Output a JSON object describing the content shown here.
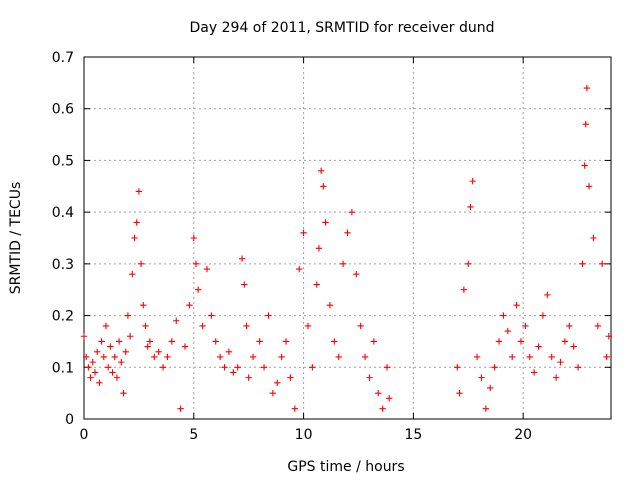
{
  "chart_data": {
    "type": "scatter",
    "title": "Day 294 of 2011, SRMTID for receiver dund",
    "xlabel": "GPS time / hours",
    "ylabel": "SRMTID / TECUs",
    "xlim": [
      0,
      24
    ],
    "ylim": [
      0,
      0.7
    ],
    "xticks": [
      0,
      5,
      10,
      15,
      20
    ],
    "yticks": [
      0,
      0.1,
      0.2,
      0.3,
      0.4,
      0.5,
      0.6,
      0.7
    ],
    "xtick_labels": [
      "0",
      "5",
      "10",
      "15",
      "20"
    ],
    "ytick_labels": [
      "0",
      "0.1",
      "0.2",
      "0.3",
      "0.4",
      "0.5",
      "0.6",
      "0.7"
    ],
    "grid": true,
    "marker": "+",
    "color": "#ff0000",
    "series": [
      {
        "name": "SRMTID",
        "points": [
          [
            0.0,
            0.16
          ],
          [
            0.1,
            0.12
          ],
          [
            0.2,
            0.1
          ],
          [
            0.3,
            0.08
          ],
          [
            0.4,
            0.11
          ],
          [
            0.5,
            0.09
          ],
          [
            0.6,
            0.13
          ],
          [
            0.7,
            0.07
          ],
          [
            0.8,
            0.15
          ],
          [
            0.9,
            0.12
          ],
          [
            1.0,
            0.18
          ],
          [
            1.1,
            0.1
          ],
          [
            1.2,
            0.14
          ],
          [
            1.3,
            0.09
          ],
          [
            1.4,
            0.12
          ],
          [
            1.5,
            0.08
          ],
          [
            1.6,
            0.15
          ],
          [
            1.7,
            0.11
          ],
          [
            1.8,
            0.05
          ],
          [
            1.9,
            0.13
          ],
          [
            2.0,
            0.2
          ],
          [
            2.1,
            0.16
          ],
          [
            2.2,
            0.28
          ],
          [
            2.3,
            0.35
          ],
          [
            2.4,
            0.38
          ],
          [
            2.5,
            0.44
          ],
          [
            2.6,
            0.3
          ],
          [
            2.7,
            0.22
          ],
          [
            2.8,
            0.18
          ],
          [
            2.9,
            0.14
          ],
          [
            3.0,
            0.15
          ],
          [
            3.2,
            0.12
          ],
          [
            3.4,
            0.13
          ],
          [
            3.6,
            0.1
          ],
          [
            3.8,
            0.12
          ],
          [
            4.0,
            0.15
          ],
          [
            4.2,
            0.19
          ],
          [
            4.4,
            0.02
          ],
          [
            4.6,
            0.14
          ],
          [
            4.8,
            0.22
          ],
          [
            5.0,
            0.35
          ],
          [
            5.1,
            0.3
          ],
          [
            5.2,
            0.25
          ],
          [
            5.4,
            0.18
          ],
          [
            5.6,
            0.29
          ],
          [
            5.8,
            0.2
          ],
          [
            6.0,
            0.15
          ],
          [
            6.2,
            0.12
          ],
          [
            6.4,
            0.1
          ],
          [
            6.6,
            0.13
          ],
          [
            6.8,
            0.09
          ],
          [
            7.0,
            0.1
          ],
          [
            7.2,
            0.31
          ],
          [
            7.3,
            0.26
          ],
          [
            7.4,
            0.18
          ],
          [
            7.5,
            0.08
          ],
          [
            7.7,
            0.12
          ],
          [
            8.0,
            0.15
          ],
          [
            8.2,
            0.1
          ],
          [
            8.4,
            0.2
          ],
          [
            8.6,
            0.05
          ],
          [
            8.8,
            0.07
          ],
          [
            9.0,
            0.12
          ],
          [
            9.2,
            0.15
          ],
          [
            9.4,
            0.08
          ],
          [
            9.6,
            0.02
          ],
          [
            9.8,
            0.29
          ],
          [
            10.0,
            0.36
          ],
          [
            10.2,
            0.18
          ],
          [
            10.4,
            0.1
          ],
          [
            10.6,
            0.26
          ],
          [
            10.7,
            0.33
          ],
          [
            10.8,
            0.48
          ],
          [
            10.9,
            0.45
          ],
          [
            11.0,
            0.38
          ],
          [
            11.2,
            0.22
          ],
          [
            11.4,
            0.15
          ],
          [
            11.6,
            0.12
          ],
          [
            11.8,
            0.3
          ],
          [
            12.0,
            0.36
          ],
          [
            12.2,
            0.4
          ],
          [
            12.4,
            0.28
          ],
          [
            12.6,
            0.18
          ],
          [
            12.8,
            0.12
          ],
          [
            13.0,
            0.08
          ],
          [
            13.2,
            0.15
          ],
          [
            13.4,
            0.05
          ],
          [
            13.6,
            0.02
          ],
          [
            13.8,
            0.1
          ],
          [
            13.9,
            0.04
          ],
          [
            17.0,
            0.1
          ],
          [
            17.1,
            0.05
          ],
          [
            17.3,
            0.25
          ],
          [
            17.5,
            0.3
          ],
          [
            17.6,
            0.41
          ],
          [
            17.7,
            0.46
          ],
          [
            17.9,
            0.12
          ],
          [
            18.1,
            0.08
          ],
          [
            18.3,
            0.02
          ],
          [
            18.5,
            0.06
          ],
          [
            18.7,
            0.1
          ],
          [
            18.9,
            0.15
          ],
          [
            19.1,
            0.2
          ],
          [
            19.3,
            0.17
          ],
          [
            19.5,
            0.12
          ],
          [
            19.7,
            0.22
          ],
          [
            19.9,
            0.15
          ],
          [
            20.1,
            0.18
          ],
          [
            20.3,
            0.12
          ],
          [
            20.5,
            0.09
          ],
          [
            20.7,
            0.14
          ],
          [
            20.9,
            0.2
          ],
          [
            21.1,
            0.24
          ],
          [
            21.3,
            0.12
          ],
          [
            21.5,
            0.08
          ],
          [
            21.7,
            0.11
          ],
          [
            21.9,
            0.15
          ],
          [
            22.1,
            0.18
          ],
          [
            22.3,
            0.14
          ],
          [
            22.5,
            0.1
          ],
          [
            22.7,
            0.3
          ],
          [
            22.8,
            0.49
          ],
          [
            22.85,
            0.57
          ],
          [
            22.9,
            0.64
          ],
          [
            23.0,
            0.45
          ],
          [
            23.2,
            0.35
          ],
          [
            23.4,
            0.18
          ],
          [
            23.6,
            0.3
          ],
          [
            23.8,
            0.12
          ],
          [
            23.9,
            0.16
          ]
        ]
      }
    ]
  }
}
